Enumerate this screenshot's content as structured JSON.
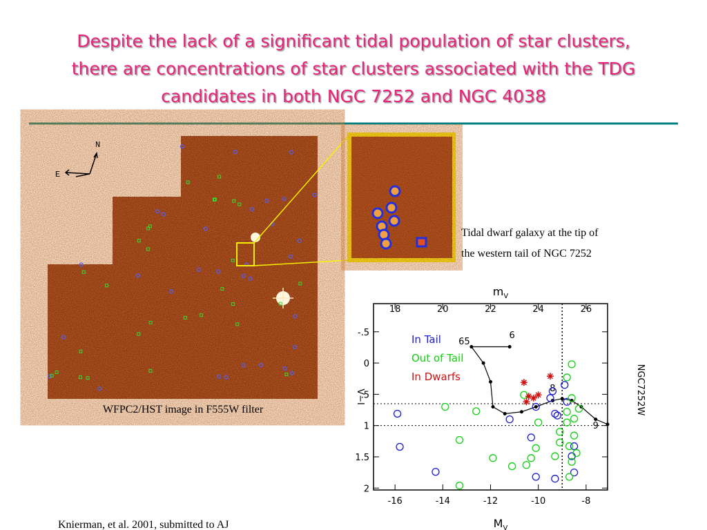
{
  "title": [
    "Despite the lack of a significant tidal population of star clusters,",
    "there are concentrations of star clusters associated with the TDG",
    "candidates in both NGC 7252 and NGC 4038"
  ],
  "compass": {
    "north": "N",
    "east": "E"
  },
  "image_caption": "WFPC2/HST image in F555W filter",
  "inset_caption": [
    "Tidal dwarf galaxy at the tip of",
    "the western tail of NGC 7252"
  ],
  "citation": "Knierman, et al. 2001, submitted to AJ",
  "chart_data": {
    "type": "scatter",
    "xlabel": "M",
    "xlabel_sub": "V",
    "x2label": "m",
    "x2label_sub": "V",
    "ylabel": "V−I",
    "side_label": "NGC7252W",
    "xlim": [
      -16.9,
      -7.1
    ],
    "xticks": [
      -16,
      -14,
      -12,
      -10,
      -8
    ],
    "x2lim": [
      17.1,
      26.9
    ],
    "x2ticks": [
      18,
      20,
      22,
      24,
      26
    ],
    "ylim": [
      -0.95,
      2.03
    ],
    "y_inverted": true,
    "yticks": [
      {
        "value": -0.5,
        "label": "-.5"
      },
      0,
      {
        "value": 0.5,
        "label": ".5"
      },
      1,
      1.5,
      2
    ],
    "vlines": [
      -9
    ],
    "hlines": [
      0.65,
      1.0
    ],
    "legend": "upper left",
    "series": [
      {
        "name": "In Tail",
        "color": "#1a1ad0",
        "marker": "circle",
        "x": [
          -15.9,
          -15.8,
          -14.3,
          -11.2,
          -10.1,
          -10.3,
          -10.1,
          -9.3,
          -9.3,
          -9.5,
          -9.4,
          -8.9,
          -8.8,
          -8.5,
          -8.6,
          -8.5,
          -9.2
        ],
        "values": [
          0.81,
          1.34,
          1.74,
          0.9,
          0.7,
          1.19,
          1.82,
          1.85,
          0.81,
          0.56,
          0.45,
          0.35,
          0.62,
          1.33,
          1.49,
          1.75,
          0.84
        ]
      },
      {
        "name": "Out of Tail",
        "color": "#10d010",
        "marker": "circle",
        "x": [
          -13.9,
          -12.6,
          -13.3,
          -11.9,
          -13.3,
          -11.1,
          -10.6,
          -10.5,
          -10.3,
          -10.1,
          -10.0,
          -9.3,
          -9.1,
          -9.1,
          -8.8,
          -8.8,
          -8.6,
          -8.6,
          -8.5,
          -8.5,
          -8.4,
          -8.6,
          -8.7,
          -8.8,
          -8.3,
          -8.7
        ],
        "values": [
          0.7,
          0.77,
          1.23,
          1.52,
          1.96,
          1.65,
          0.51,
          1.63,
          1.52,
          1.36,
          0.95,
          1.49,
          1.27,
          1.1,
          0.78,
          0.95,
          0.02,
          0.56,
          0.89,
          1.16,
          1.44,
          1.58,
          1.82,
          0.23,
          0.73,
          1.33
        ]
      },
      {
        "name": "In Dwarfs",
        "color": "#d01010",
        "marker": "star",
        "x": [
          -10.6,
          -10.4,
          -10.2,
          -10.0,
          -9.5,
          -10.5
        ],
        "values": [
          0.31,
          0.53,
          0.56,
          0.51,
          0.21,
          0.62
        ]
      }
    ],
    "track": {
      "color": "#000000",
      "x": [
        -11.2,
        -12.8,
        -12.3,
        -12.0,
        -11.9,
        -11.4,
        -10.7,
        -10.1,
        -9.4,
        -9.0,
        -8.6,
        -8.2,
        -7.6,
        -7.1
      ],
      "values": [
        -0.26,
        -0.26,
        0.0,
        0.3,
        0.7,
        0.81,
        0.78,
        0.7,
        0.6,
        0.57,
        0.6,
        0.7,
        0.9,
        0.98
      ]
    },
    "annotations": [
      {
        "text": "65",
        "x": -13.1,
        "y": -0.3
      },
      {
        "text": "6",
        "x": -11.1,
        "y": -0.4
      },
      {
        "text": "8",
        "x": -9.4,
        "y": 0.45
      },
      {
        "text": "9",
        "x": -7.6,
        "y": 1.05
      }
    ]
  }
}
